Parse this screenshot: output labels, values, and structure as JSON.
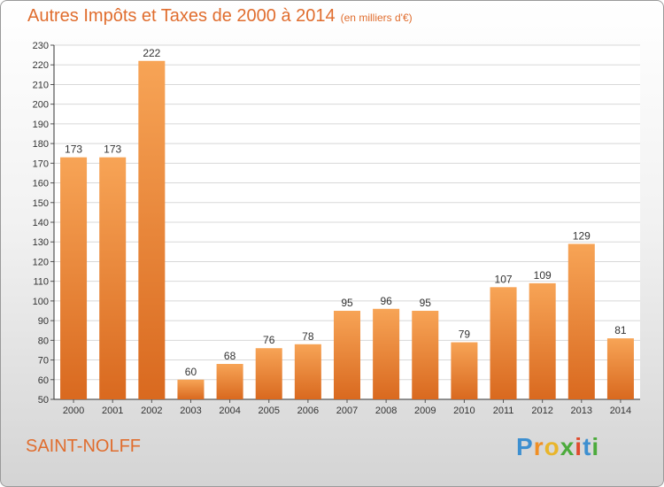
{
  "title": "Autres Impôts et Taxes de 2000 à 2014",
  "subtitle": "(en milliers d'€)",
  "place": "SAINT-NOLFF",
  "logo": {
    "letters": [
      "P",
      "r",
      "o",
      "x",
      "i",
      "t",
      "i"
    ]
  },
  "colors": {
    "bar_top": "#f7a456",
    "bar_bottom": "#d9691f",
    "title": "#e06d2e"
  },
  "chart_data": {
    "type": "bar",
    "title": "Autres Impôts et Taxes de 2000 à 2014",
    "subtitle": "(en milliers d'€)",
    "categories": [
      "2000",
      "2001",
      "2002",
      "2003",
      "2004",
      "2005",
      "2006",
      "2007",
      "2008",
      "2009",
      "2010",
      "2011",
      "2012",
      "2013",
      "2014"
    ],
    "values": [
      173,
      173,
      222,
      60,
      68,
      76,
      78,
      95,
      96,
      95,
      79,
      107,
      109,
      129,
      81
    ],
    "ylim": [
      50,
      230
    ],
    "yticks": [
      50,
      60,
      70,
      80,
      90,
      100,
      110,
      120,
      130,
      140,
      150,
      160,
      170,
      180,
      190,
      200,
      210,
      220,
      230
    ],
    "grid": true,
    "xlabel": "",
    "ylabel": ""
  }
}
